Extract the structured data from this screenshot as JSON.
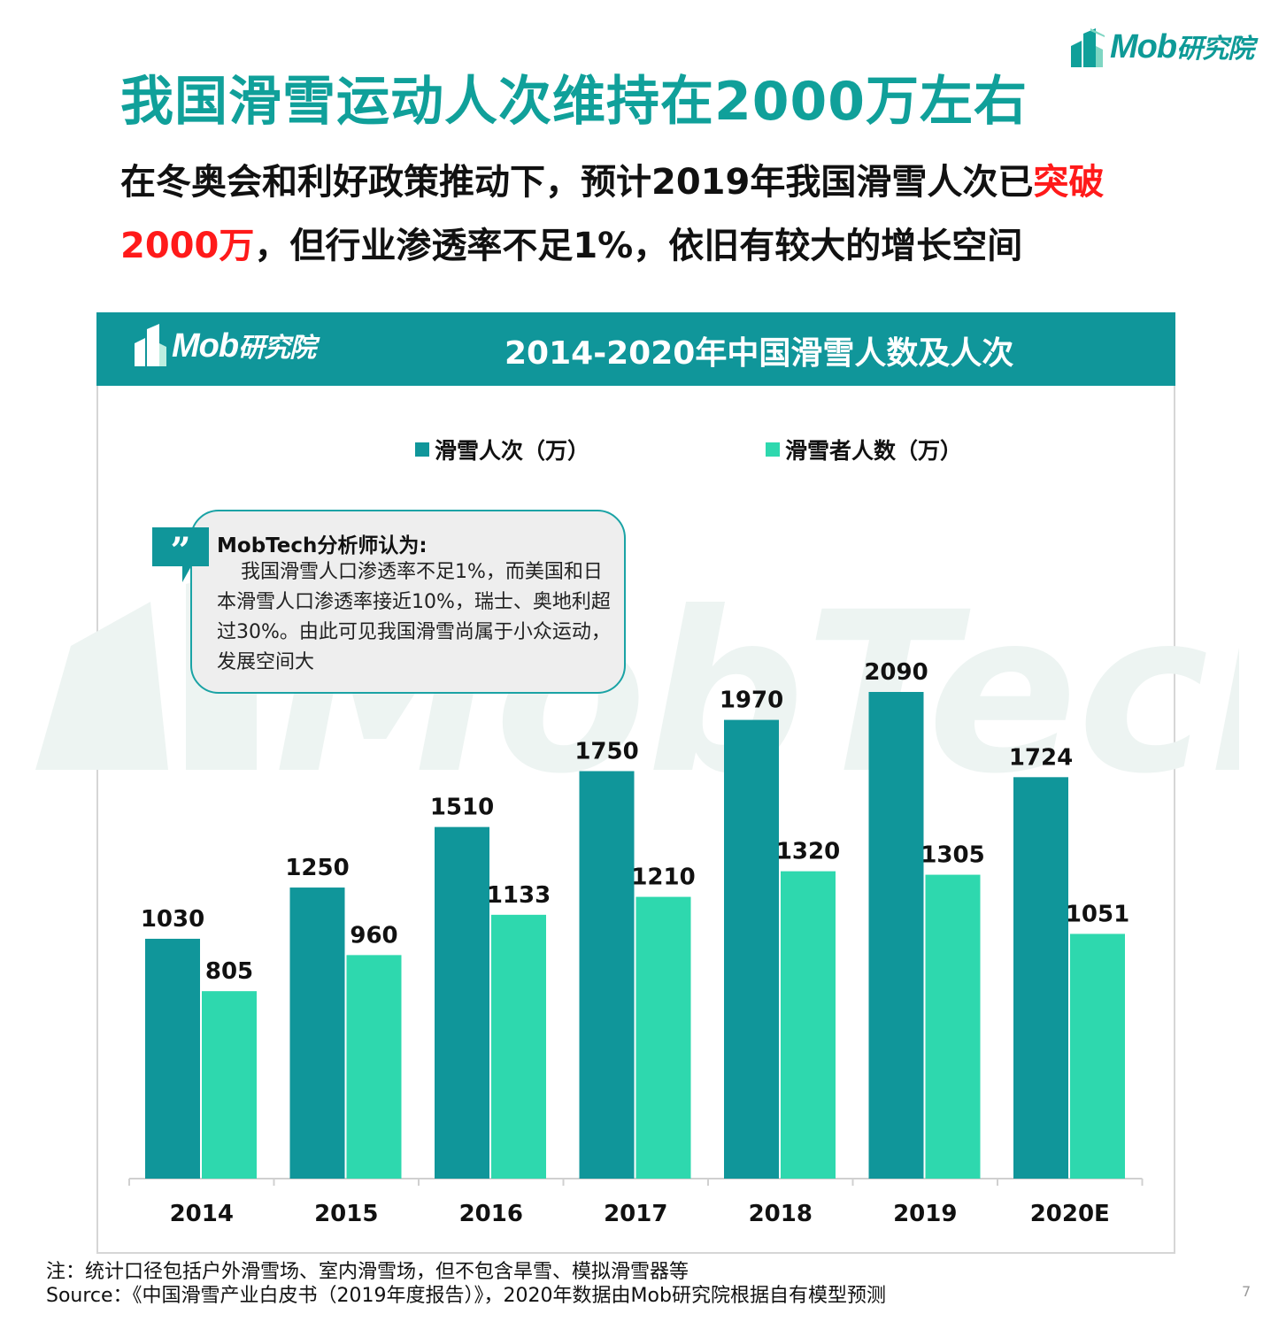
{
  "brand": {
    "logo_text": "Mob",
    "logo_cn": "研究院",
    "teal": "#10969a",
    "bright_teal": "#10a09a",
    "mint": "#2ed8ae",
    "red": "#ff1a1a"
  },
  "header": {
    "title": "我国滑雪运动人次维持在2000万左右",
    "subtitle_part1": "在冬奥会和利好政策推动下，预计2019年我国滑雪人次已",
    "subtitle_red1": "突破",
    "subtitle_red2": "2000万",
    "subtitle_part2": "，但行业渗透率不足1%，依旧有较大的增长空间"
  },
  "callout": {
    "icon": "quote-icon",
    "title": "MobTech分析师认为:",
    "text": "我国滑雪人口渗透率不足1%，而美国和日本滑雪人口渗透率接近10%，瑞士、奥地利超过30%。由此可见我国滑雪尚属于小众运动，发展空间大"
  },
  "watermark": {
    "text": "MobTech 袤博"
  },
  "chart_data": {
    "type": "bar",
    "title": "2014-2020年中国滑雪人数及人次",
    "categories": [
      "2014",
      "2015",
      "2016",
      "2017",
      "2018",
      "2019",
      "2020E"
    ],
    "series": [
      {
        "name": "滑雪人次（万）",
        "color": "#10969a",
        "values": [
          1030,
          1250,
          1510,
          1750,
          1970,
          2090,
          1724
        ]
      },
      {
        "name": "滑雪者人数（万）",
        "color": "#2ed8ae",
        "values": [
          805,
          960,
          1133,
          1210,
          1320,
          1305,
          1051
        ]
      }
    ],
    "ylim": [
      0,
      2090
    ],
    "grid": false,
    "legend": "top",
    "data_labels": true
  },
  "footer": {
    "note": "注：统计口径包括户外滑雪场、室内滑雪场，但不包含旱雪、模拟滑雪器等",
    "source": "Source：《中国滑雪产业白皮书（2019年度报告）》，2020年数据由Mob研究院根据自有模型预测",
    "page_number": "7"
  }
}
